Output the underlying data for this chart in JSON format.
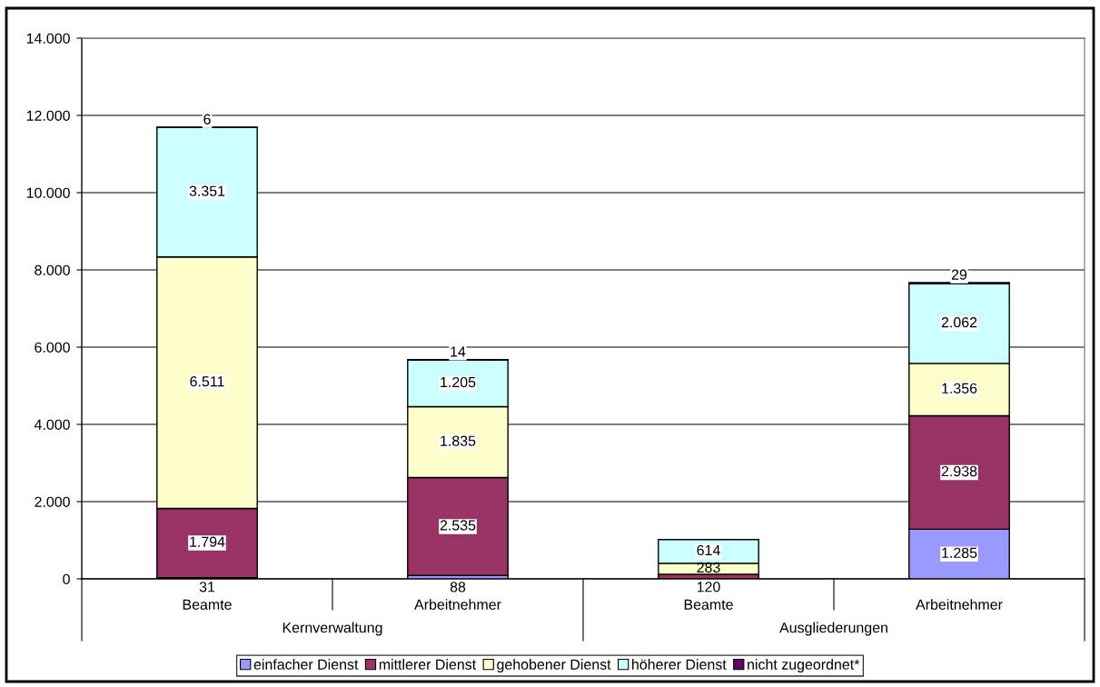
{
  "chart_data": {
    "type": "bar",
    "stacked": true,
    "categories": [
      "Beamte",
      "Arbeitnehmer",
      "Beamte",
      "Arbeitnehmer"
    ],
    "annotations": [
      "Kernverwaltung",
      "Ausgliederungen"
    ],
    "series": [
      {
        "name": "einfacher Dienst",
        "color": "#9999ff",
        "values": [
          31,
          88,
          null,
          1285
        ],
        "value_labels": [
          "31",
          "88",
          null,
          "1.285"
        ]
      },
      {
        "name": "mittlerer Dienst",
        "color": "#993366",
        "values": [
          1794,
          2535,
          120,
          2938
        ],
        "value_labels": [
          "1.794",
          "2.535",
          "120",
          "2.938"
        ]
      },
      {
        "name": "gehobener Dienst",
        "color": "#ffffcc",
        "values": [
          6511,
          1835,
          283,
          1356
        ],
        "value_labels": [
          "6.511",
          "1.835",
          "283",
          "1.356"
        ]
      },
      {
        "name": "höherer Dienst",
        "color": "#ccffff",
        "values": [
          3351,
          1205,
          614,
          2062
        ],
        "value_labels": [
          "3.351",
          "1.205",
          "614",
          "2.062"
        ]
      },
      {
        "name": "nicht zugeordnet*",
        "color": "#660066",
        "values": [
          6,
          14,
          null,
          29
        ],
        "value_labels": [
          "6",
          "14",
          null,
          "29"
        ]
      }
    ],
    "ylim": [
      0,
      14000
    ],
    "yticks": [
      0,
      {
        "value": 2000,
        "label": "2.000"
      },
      {
        "value": 4000,
        "label": "4.000"
      },
      {
        "value": 6000,
        "label": "6.000"
      },
      {
        "value": 8000,
        "label": "8.000"
      },
      {
        "value": 10000,
        "label": "10.000"
      },
      {
        "value": 12000,
        "label": "12.000"
      },
      {
        "value": 14000,
        "label": "14.000"
      }
    ],
    "grid": "y",
    "legend": "bottom"
  }
}
